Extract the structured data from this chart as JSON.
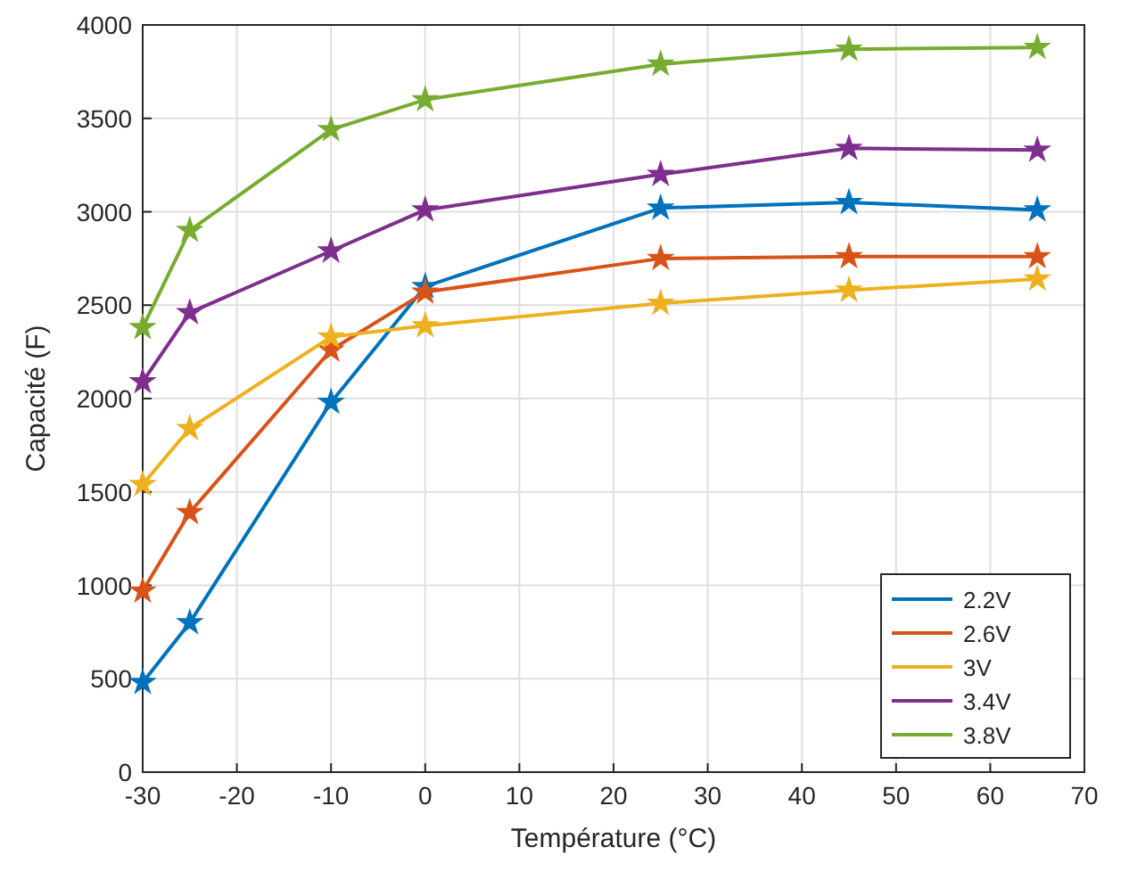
{
  "chart_data": {
    "type": "line",
    "xlabel": "Température (°C)",
    "ylabel": "Capacité (F)",
    "x": [
      -30,
      -25,
      -10,
      0,
      25,
      45,
      65
    ],
    "series": [
      {
        "name": "2.2V",
        "color": "#0072bd",
        "values": [
          480,
          800,
          1980,
          2600,
          3020,
          3050,
          3010
        ]
      },
      {
        "name": "2.6V",
        "color": "#d95319",
        "values": [
          970,
          1390,
          2260,
          2570,
          2750,
          2760,
          2760
        ]
      },
      {
        "name": "3V",
        "color": "#edb120",
        "values": [
          1540,
          1840,
          2330,
          2390,
          2510,
          2580,
          2640
        ]
      },
      {
        "name": "3.4V",
        "color": "#7e2f8e",
        "values": [
          2090,
          2460,
          2790,
          3010,
          3200,
          3340,
          3330
        ]
      },
      {
        "name": "3.8V",
        "color": "#77ac30",
        "values": [
          2380,
          2900,
          3440,
          3600,
          3790,
          3870,
          3880
        ]
      }
    ],
    "xlim": [
      -30,
      70
    ],
    "xticks": [
      -30,
      -20,
      -10,
      0,
      10,
      20,
      30,
      40,
      50,
      60,
      70
    ],
    "ylim": [
      0,
      4000
    ],
    "yticks": [
      0,
      500,
      1000,
      1500,
      2000,
      2500,
      3000,
      3500,
      4000
    ],
    "grid": true,
    "legend": "bottom right",
    "marker": "star",
    "line_style": "solid"
  }
}
